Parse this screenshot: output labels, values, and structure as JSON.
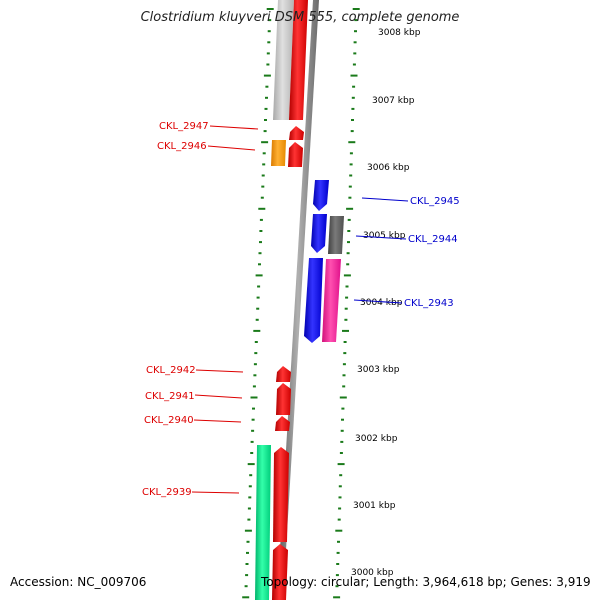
{
  "title": "Clostridium kluyveri DSM 555, complete genome",
  "footer": {
    "accession": "Accession: NC_009706",
    "topology": "Topology: circular; Length: 3,964,618 bp; Genes: 3,919"
  },
  "colors": {
    "backbone": "#808080",
    "tick": "#1a7a1a",
    "forward_label": "#dd0000",
    "reverse_label": "#0000cc",
    "red": "#ff0000",
    "blue": "#0000ff",
    "green": "#00e68a",
    "orange": "#ff9900",
    "light_gray": "#c8c8c8",
    "dark_gray": "#606060",
    "magenta": "#ff1493"
  },
  "scale_labels": [
    "3008 kbp",
    "3007 kbp",
    "3006 kbp",
    "3005 kbp",
    "3004 kbp",
    "3003 kbp",
    "3002 kbp",
    "3001 kbp",
    "3000 kbp"
  ],
  "gene_labels": [
    {
      "text": "CKL_2947",
      "side": "forward"
    },
    {
      "text": "CKL_2946",
      "side": "forward"
    },
    {
      "text": "CKL_2945",
      "side": "reverse"
    },
    {
      "text": "CKL_2944",
      "side": "reverse"
    },
    {
      "text": "CKL_2943",
      "side": "reverse"
    },
    {
      "text": "CKL_2942",
      "side": "forward"
    },
    {
      "text": "CKL_2941",
      "side": "forward"
    },
    {
      "text": "CKL_2940",
      "side": "forward"
    },
    {
      "text": "CKL_2939",
      "side": "forward"
    }
  ],
  "features": [
    {
      "name": "feature-light-gray",
      "color": "light_gray"
    },
    {
      "name": "feature-red-long",
      "color": "red"
    },
    {
      "name": "feature-ckl-2947",
      "color": "red"
    },
    {
      "name": "feature-ckl-2946-red",
      "color": "red"
    },
    {
      "name": "feature-ckl-2946-orange",
      "color": "orange"
    },
    {
      "name": "feature-ckl-2945",
      "color": "blue"
    },
    {
      "name": "feature-ckl-2944",
      "color": "blue"
    },
    {
      "name": "feature-ckl-2944-gray",
      "color": "dark_gray"
    },
    {
      "name": "feature-ckl-2943",
      "color": "blue"
    },
    {
      "name": "feature-ckl-2943-magenta",
      "color": "magenta"
    },
    {
      "name": "feature-ckl-2942",
      "color": "red"
    },
    {
      "name": "feature-ckl-2941",
      "color": "red"
    },
    {
      "name": "feature-ckl-2940",
      "color": "red"
    },
    {
      "name": "feature-ckl-2939-green",
      "color": "green"
    },
    {
      "name": "feature-ckl-2939",
      "color": "red"
    },
    {
      "name": "feature-bottom-red",
      "color": "red"
    }
  ]
}
